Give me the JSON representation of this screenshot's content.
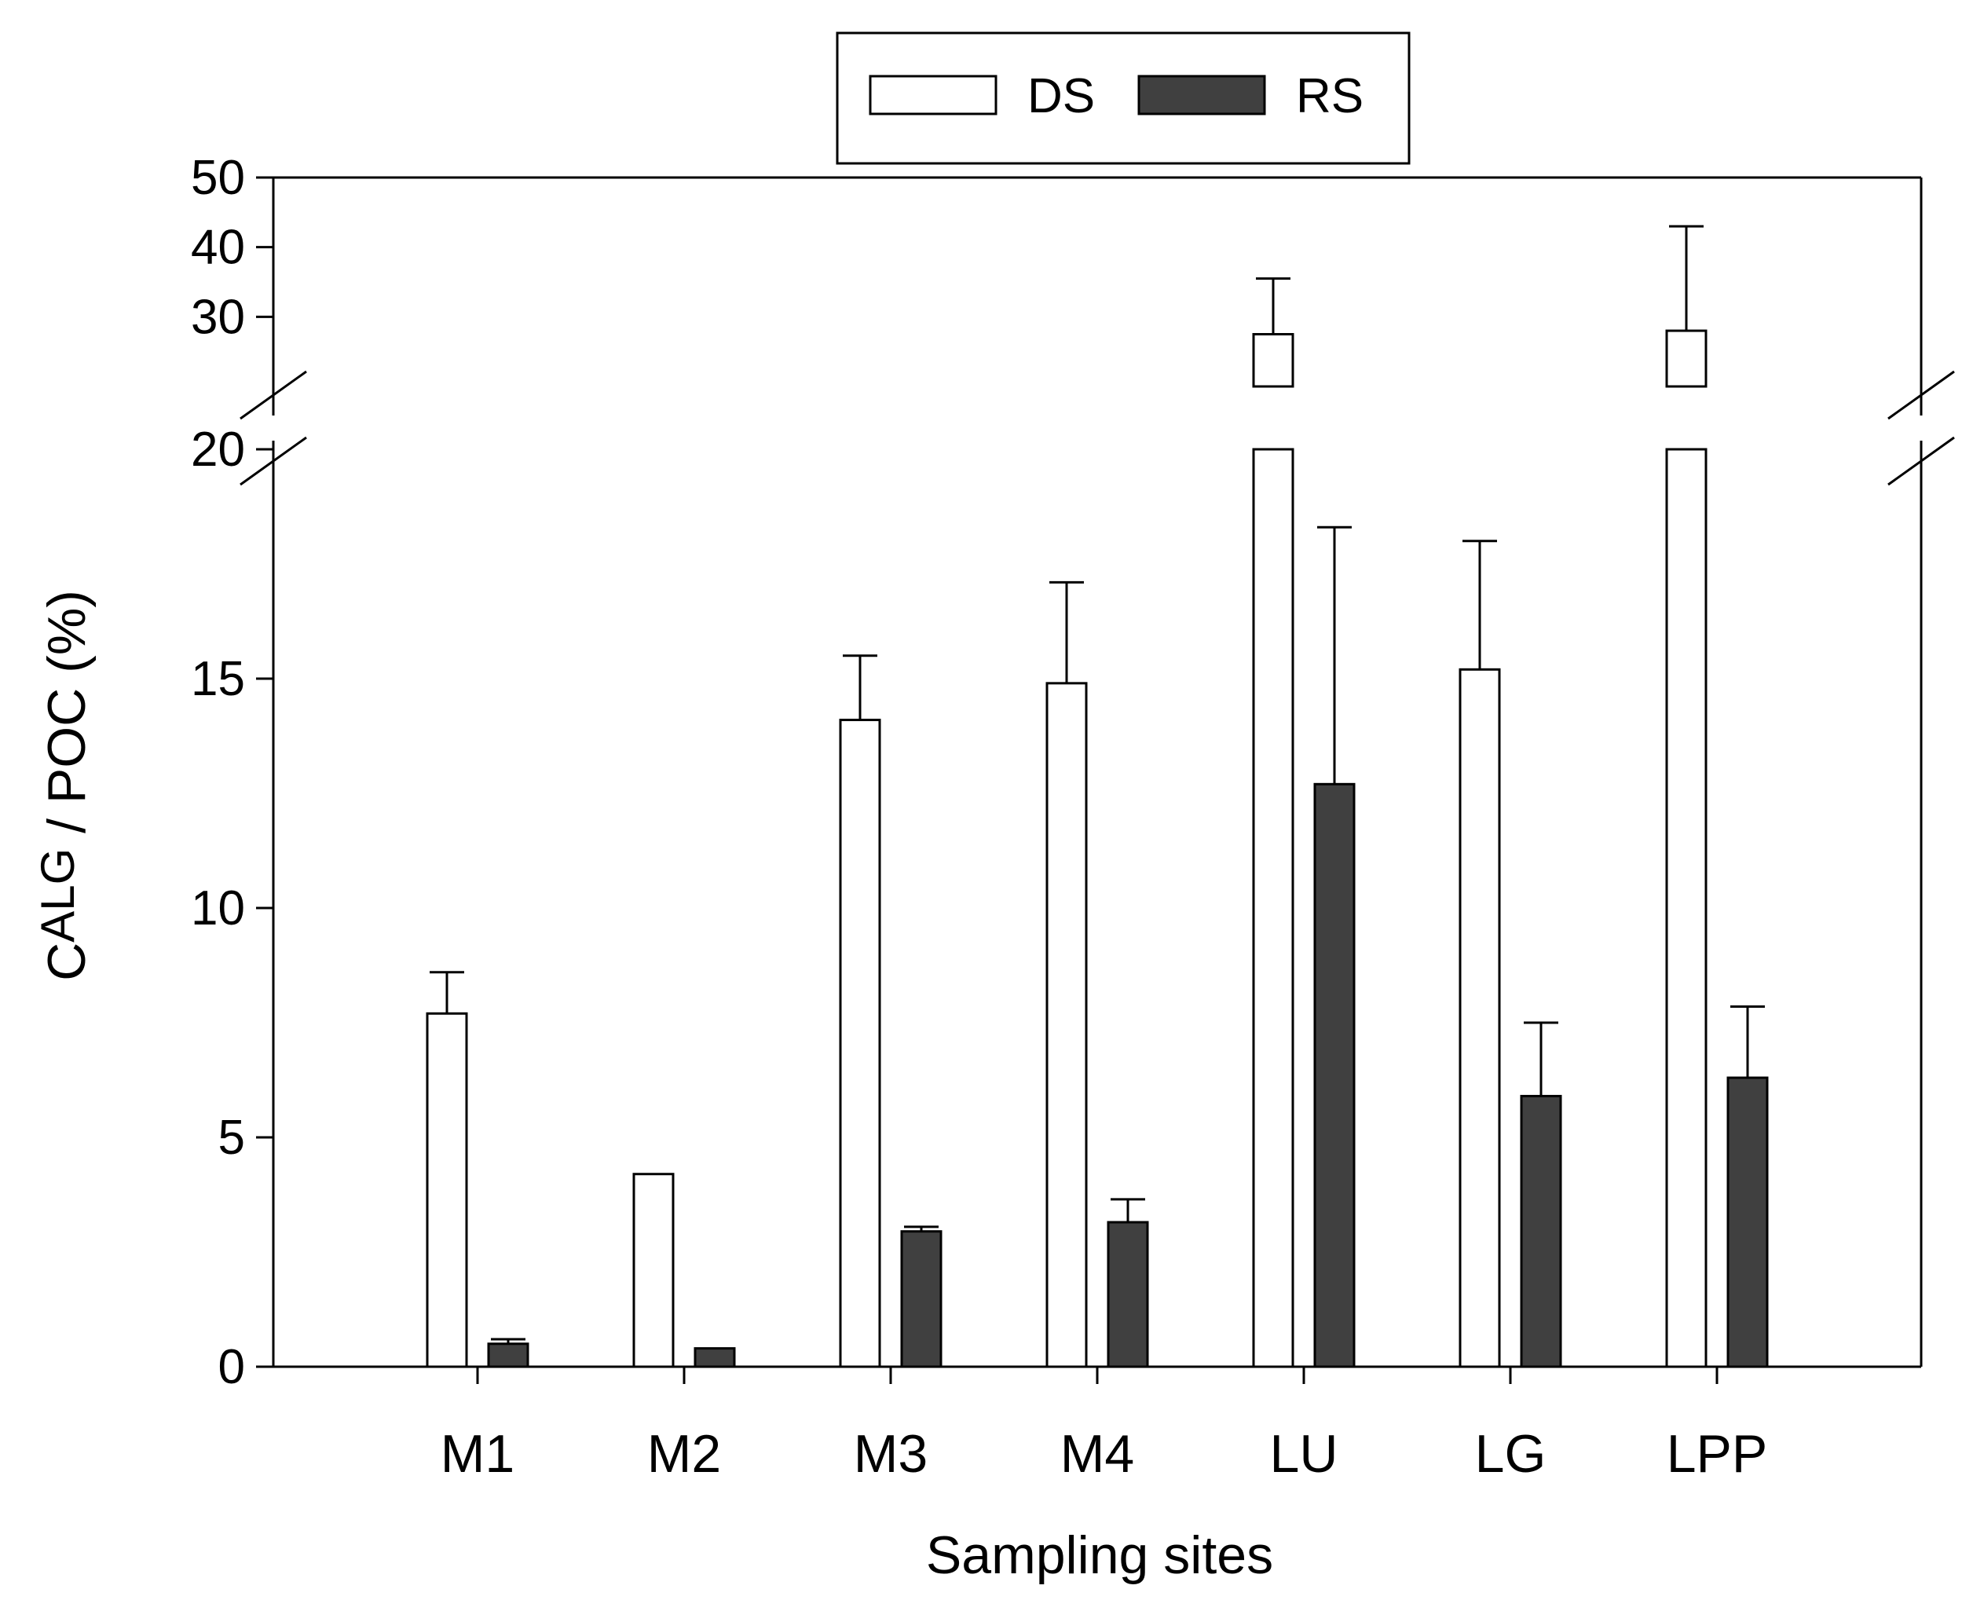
{
  "chart_data": {
    "type": "bar",
    "title": "",
    "xlabel": "Sampling sites",
    "ylabel": {
      "main": "C",
      "subscript": "ALG",
      "rest": " / POC (%)"
    },
    "categories": [
      "M1",
      "M2",
      "M3",
      "M4",
      "LU",
      "LG",
      "LPP"
    ],
    "series": [
      {
        "name": "DS",
        "color": "#ffffff",
        "values": [
          7.7,
          4.2,
          14.1,
          14.9,
          27.5,
          15.2,
          28.0
        ],
        "errors": [
          0.9,
          null,
          1.4,
          2.2,
          8.0,
          2.8,
          15.0
        ]
      },
      {
        "name": "RS",
        "color": "#404040",
        "values": [
          0.5,
          0.4,
          2.95,
          3.15,
          12.7,
          5.9,
          6.3
        ],
        "errors": [
          0.1,
          null,
          0.1,
          0.5,
          5.6,
          1.6,
          1.55
        ]
      }
    ],
    "y_axis": {
      "broken": true,
      "lower_range": [
        0,
        20
      ],
      "upper_range": [
        20,
        50
      ],
      "lower_ticks": [
        0,
        5,
        10,
        15,
        20
      ],
      "upper_ticks": [
        30,
        40,
        50
      ]
    },
    "legend": {
      "position": "top-center",
      "entries": [
        "DS",
        "RS"
      ]
    },
    "grid": false
  }
}
